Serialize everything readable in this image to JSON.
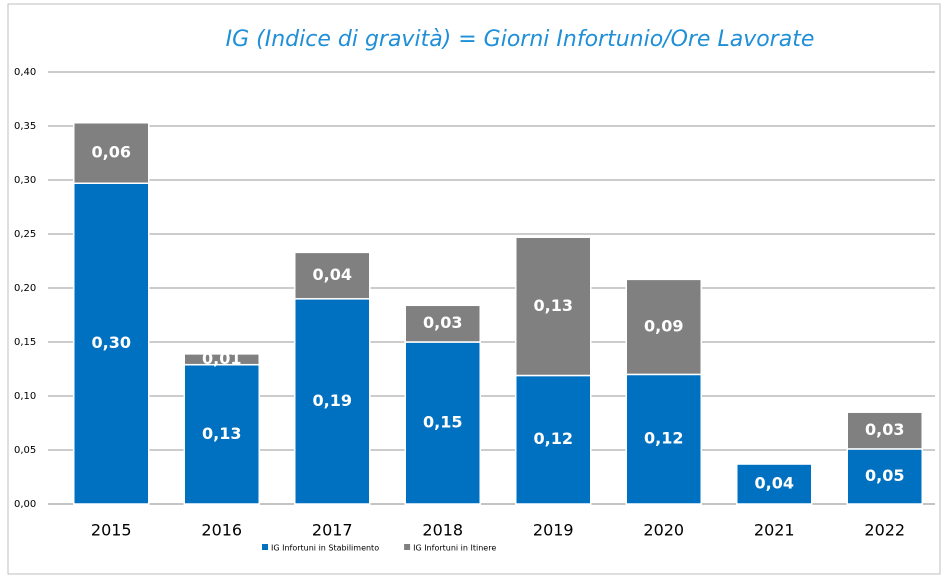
{
  "chart_data": {
    "type": "stacked_bar",
    "title": "IG (Indice di gravità) = Giorni Infortunio/Ore Lavorate",
    "categories": [
      "2015",
      "2016",
      "2017",
      "2018",
      "2019",
      "2020",
      "2021",
      "2022"
    ],
    "series": [
      {
        "name": "IG Infortuni in Stabilimento",
        "color": "#0070c0",
        "values": [
          0.297,
          0.129,
          0.19,
          0.15,
          0.119,
          0.12,
          0.037,
          0.051
        ],
        "value_labels": [
          "0,30",
          "0,13",
          "0,19",
          "0,15",
          "0,12",
          "0,12",
          "0,04",
          "0,05"
        ]
      },
      {
        "name": "IG Infortuni in Itinere",
        "color": "#808080",
        "values": [
          0.056,
          0.01,
          0.043,
          0.034,
          0.128,
          0.088,
          null,
          0.034
        ],
        "value_labels": [
          "0,06",
          "0,01",
          "0,04",
          "0,03",
          "0,13",
          "0,09",
          null,
          "0,03"
        ]
      }
    ],
    "ylim": [
      0,
      0.4
    ],
    "yticks": [
      {
        "value": 0,
        "label": "0,00"
      },
      {
        "value": 0.05,
        "label": "0,05"
      },
      {
        "value": 0.1,
        "label": "0,10"
      },
      {
        "value": 0.15,
        "label": "0,15"
      },
      {
        "value": 0.2,
        "label": "0,20"
      },
      {
        "value": 0.25,
        "label": "0,25"
      },
      {
        "value": 0.3,
        "label": "0,30"
      },
      {
        "value": 0.35,
        "label": "0,35"
      },
      {
        "value": 0.4,
        "label": "0,40"
      }
    ],
    "grid": true,
    "legend": "bottom"
  }
}
